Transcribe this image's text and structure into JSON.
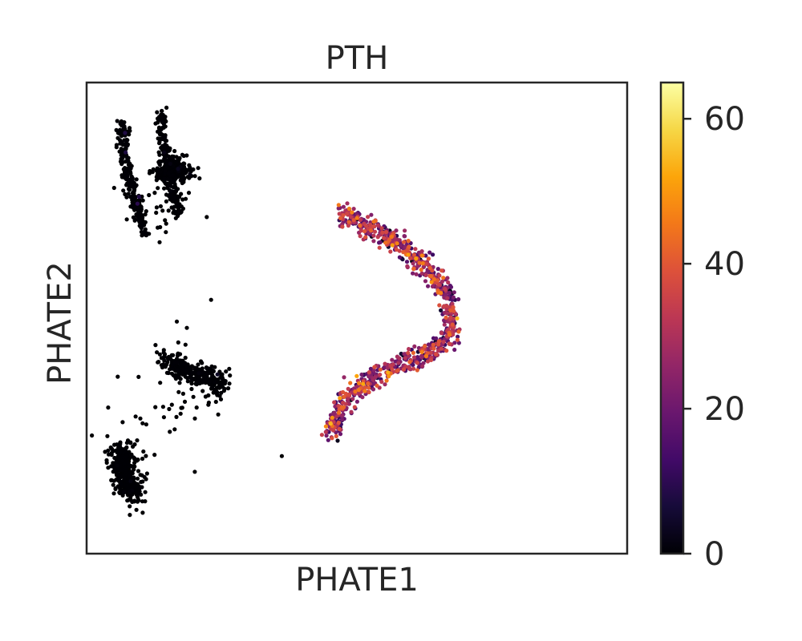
{
  "chart_data": {
    "type": "scatter",
    "title": "PTH",
    "xlabel": "PHATE1",
    "ylabel": "PHATE2",
    "x_ticks_shown": false,
    "y_ticks_shown": false,
    "grid": false,
    "colorbar": {
      "colormap": "inferno",
      "min": 0,
      "max": 65,
      "ticks": [
        0,
        20,
        40,
        60
      ],
      "tick_labels": [
        "0",
        "20",
        "40",
        "60"
      ],
      "placement": "right"
    },
    "xlim": [
      -0.035,
      0.055
    ],
    "ylim": [
      -0.035,
      0.035
    ],
    "clusters": [
      {
        "group": "upper-left arm",
        "polyline": [
          [
            -0.029,
            0.029
          ],
          [
            -0.0288,
            0.025
          ],
          [
            -0.0282,
            0.0215
          ],
          [
            -0.027,
            0.018
          ],
          [
            -0.0262,
            0.015
          ],
          [
            -0.0255,
            0.0125
          ]
        ],
        "n": 240,
        "spread": 0.0005,
        "value_mean": 0.3,
        "value_max": 10
      },
      {
        "group": "upper-left V arm",
        "polyline": [
          [
            -0.0225,
            0.0305
          ],
          [
            -0.0222,
            0.0265
          ],
          [
            -0.0218,
            0.0235
          ],
          [
            -0.0212,
            0.0205
          ],
          [
            -0.0205,
            0.018
          ],
          [
            -0.0198,
            0.0155
          ]
        ],
        "n": 200,
        "spread": 0.0005,
        "value_mean": 0.2,
        "value_max": 3
      },
      {
        "group": "upper-left V blob",
        "polyline": [
          [
            -0.0225,
            0.0215
          ],
          [
            -0.0205,
            0.0225
          ],
          [
            -0.0185,
            0.0215
          ]
        ],
        "n": 220,
        "spread": 0.0009,
        "value_mean": 0.2,
        "value_max": 3
      },
      {
        "group": "upper-left scattered",
        "polyline": [
          [
            -0.0245,
            0.0205
          ],
          [
            -0.027,
            0.015
          ],
          [
            -0.018,
            0.0195
          ],
          [
            -0.0245,
            0.0135
          ]
        ],
        "n": 35,
        "spread": 0.0026,
        "value_mean": 0.1,
        "value_max": 2
      },
      {
        "group": "middle-left branch",
        "polyline": [
          [
            -0.0215,
            -0.006
          ],
          [
            -0.0195,
            -0.0075
          ],
          [
            -0.0175,
            -0.0083
          ],
          [
            -0.0155,
            -0.0085
          ],
          [
            -0.0135,
            -0.009
          ],
          [
            -0.0125,
            -0.0105
          ]
        ],
        "n": 280,
        "spread": 0.0008,
        "value_mean": 0.2,
        "value_max": 4
      },
      {
        "group": "middle-left scattered",
        "polyline": [
          [
            -0.0215,
            -0.002
          ],
          [
            -0.018,
            -0.0035
          ],
          [
            -0.0225,
            -0.0115
          ],
          [
            -0.0125,
            -0.0135
          ],
          [
            -0.011,
            -0.0155
          ]
        ],
        "n": 40,
        "spread": 0.0032,
        "value_mean": 0.1,
        "value_max": 2
      },
      {
        "group": "lower-left blob",
        "polyline": [
          [
            -0.0295,
            -0.0195
          ],
          [
            -0.0287,
            -0.0225
          ],
          [
            -0.0278,
            -0.0248
          ],
          [
            -0.0272,
            -0.0268
          ]
        ],
        "n": 380,
        "spread": 0.0011,
        "value_mean": 0.1,
        "value_max": 1
      },
      {
        "group": "lower-left scattered",
        "polyline": [
          [
            -0.0275,
            -0.021
          ],
          [
            -0.023,
            -0.02
          ],
          [
            -0.031,
            -0.012
          ]
        ],
        "n": 18,
        "spread": 0.0035,
        "value_mean": 0.1,
        "value_max": 1
      },
      {
        "group": "isolated point",
        "polyline": [
          [
            -0.0025,
            -0.0205
          ]
        ],
        "n": 1,
        "spread": 0.0,
        "value_mean": 0.0,
        "value_max": 0
      },
      {
        "group": "right arc",
        "polyline": [
          [
            0.0075,
            0.0155
          ],
          [
            0.0135,
            0.013
          ],
          [
            0.0185,
            0.01
          ],
          [
            0.0225,
            0.0065
          ],
          [
            0.025,
            0.0035
          ],
          [
            0.0258,
            0.0005
          ],
          [
            0.0255,
            -0.0025
          ],
          [
            0.0225,
            -0.005
          ],
          [
            0.017,
            -0.007
          ],
          [
            0.0115,
            -0.0095
          ],
          [
            0.008,
            -0.012
          ],
          [
            0.0055,
            -0.0175
          ]
        ],
        "n": 900,
        "spread": 0.0008,
        "value_mean": 24,
        "value_max": 62
      }
    ]
  }
}
